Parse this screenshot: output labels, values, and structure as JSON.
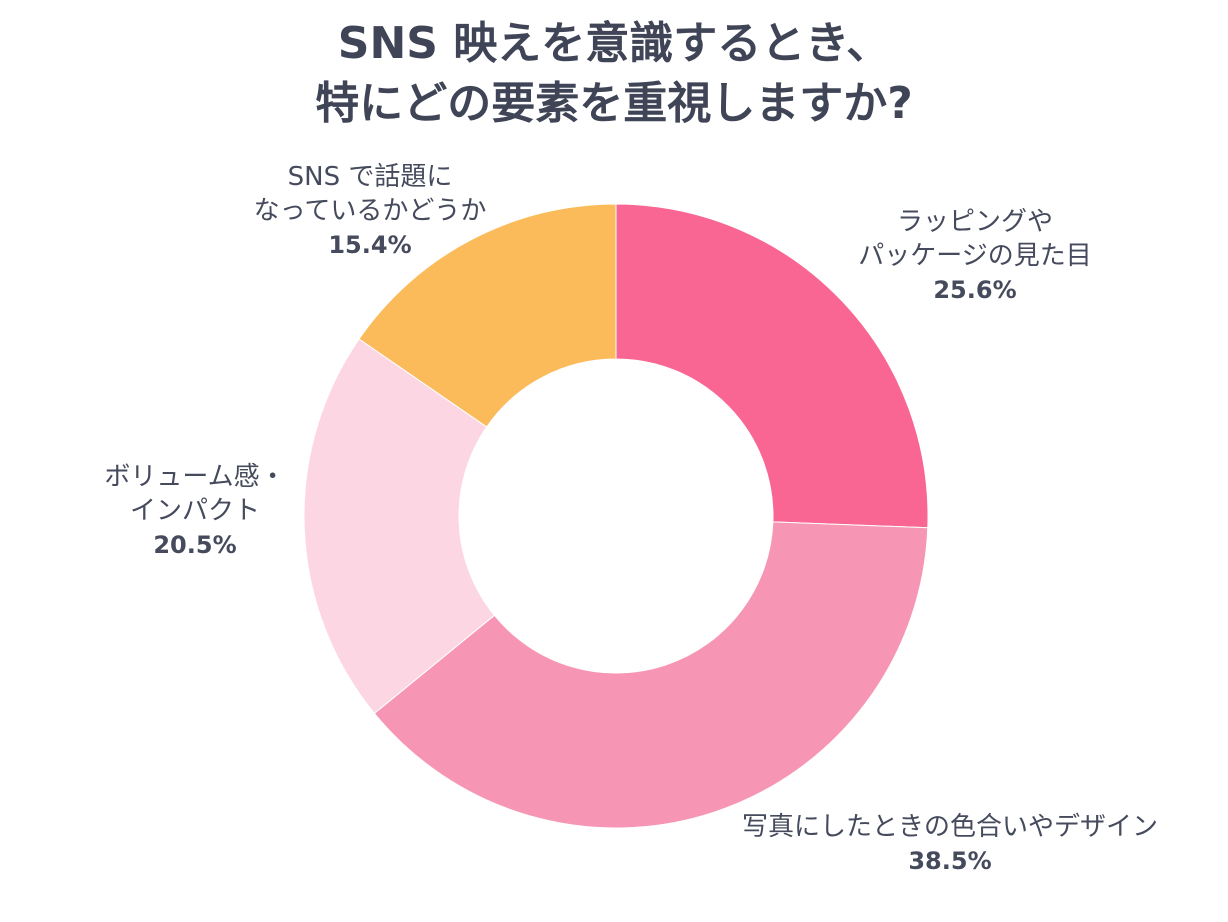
{
  "chart_data": {
    "type": "pie",
    "title": [
      "SNS 映えを意識するとき、",
      "特にどの要素を重視しますか?"
    ],
    "slices": [
      {
        "label": [
          "ラッピングや",
          "パッケージの見た目"
        ],
        "value": 25.6,
        "display": "25.6%",
        "color": "#f96694"
      },
      {
        "label": [
          "写真にしたときの色合いやデザイン"
        ],
        "value": 38.5,
        "display": "38.5%",
        "color": "#f795b4"
      },
      {
        "label": [
          "ボリューム感・",
          "インパクト"
        ],
        "value": 20.5,
        "display": "20.5%",
        "color": "#fdd6e3"
      },
      {
        "label": [
          "SNS で話題に",
          "なっているかどうか"
        ],
        "value": 15.4,
        "display": "15.4%",
        "color": "#fbbb5b"
      }
    ],
    "donut": true,
    "legend": "none"
  }
}
